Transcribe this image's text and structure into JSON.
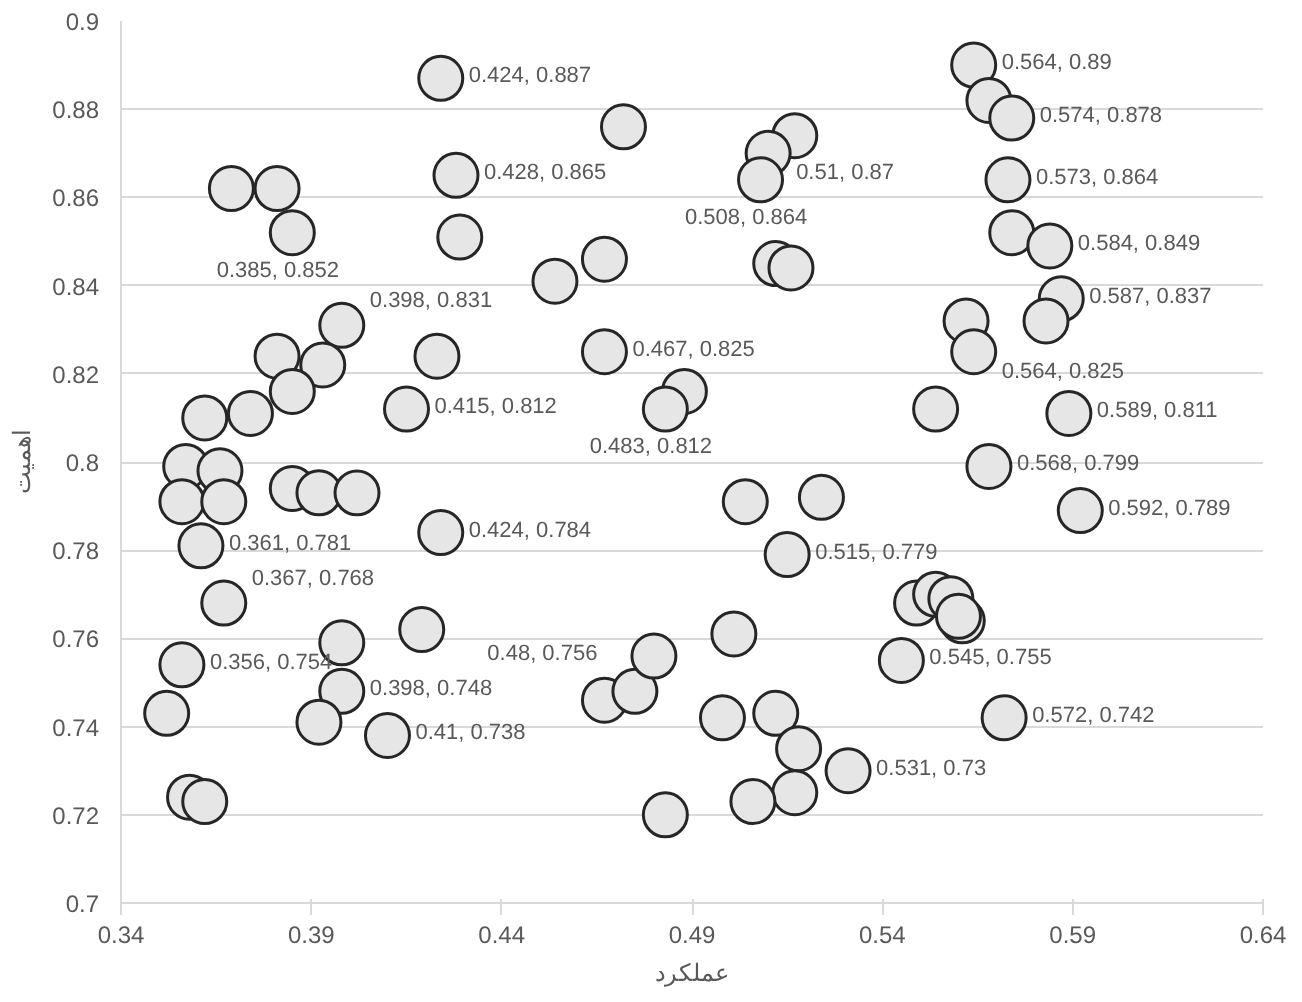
{
  "chart_data": {
    "type": "scatter",
    "xlabel": "عملکرد",
    "ylabel": "اهمیت",
    "xlim": [
      0.34,
      0.64
    ],
    "xticks": [
      0.34,
      0.39,
      0.44,
      0.49,
      0.54,
      0.59,
      0.64
    ],
    "ylim": [
      0.7,
      0.9
    ],
    "yticks": [
      0.7,
      0.72,
      0.74,
      0.76,
      0.78,
      0.8,
      0.82,
      0.84,
      0.86,
      0.88,
      0.9
    ],
    "grid": "y",
    "marker": "circle",
    "series": [
      {
        "color": "#e6e6e6",
        "x": [
          0.424,
          0.564,
          0.568,
          0.574,
          0.472,
          0.517,
          0.51,
          0.428,
          0.508,
          0.573,
          0.369,
          0.381,
          0.385,
          0.429,
          0.454,
          0.467,
          0.512,
          0.516,
          0.574,
          0.584,
          0.587,
          0.562,
          0.583,
          0.564,
          0.398,
          0.381,
          0.393,
          0.423,
          0.467,
          0.362,
          0.385,
          0.374,
          0.415,
          0.488,
          0.483,
          0.554,
          0.589,
          0.568,
          0.592,
          0.504,
          0.524,
          0.515,
          0.357,
          0.366,
          0.356,
          0.367,
          0.385,
          0.392,
          0.402,
          0.361,
          0.424,
          0.367,
          0.419,
          0.398,
          0.356,
          0.398,
          0.352,
          0.392,
          0.41,
          0.358,
          0.362,
          0.467,
          0.475,
          0.48,
          0.501,
          0.498,
          0.512,
          0.518,
          0.531,
          0.517,
          0.506,
          0.483,
          0.545,
          0.572,
          0.549,
          0.554,
          0.558,
          0.561,
          0.56
        ],
        "value_labels": [
          "0.424, 0.887",
          "0.564, 0.89",
          null,
          "0.574, 0.878",
          null,
          null,
          "0.51, 0.87",
          "0.428, 0.865",
          "0.508, 0.864",
          "0.573, 0.864",
          null,
          null,
          "0.385, 0.852",
          null,
          null,
          null,
          null,
          null,
          null,
          "0.584, 0.849",
          "0.587, 0.837",
          null,
          null,
          "0.564, 0.825",
          "0.398, 0.831",
          null,
          null,
          null,
          "0.467, 0.825",
          null,
          null,
          null,
          "0.415, 0.812",
          null,
          "0.483, 0.812",
          null,
          "0.589, 0.811",
          "0.568, 0.799",
          "0.592, 0.789",
          null,
          null,
          "0.515, 0.779",
          null,
          null,
          null,
          null,
          null,
          null,
          null,
          "0.361, 0.781",
          "0.424, 0.784",
          "0.367, 0.768",
          null,
          null,
          "0.356, 0.754",
          "0.398, 0.748",
          null,
          null,
          "0.41, 0.738",
          null,
          null,
          null,
          null,
          "0.48, 0.756",
          null,
          null,
          null,
          null,
          "0.531, 0.73",
          null,
          null,
          null,
          "0.545, 0.755",
          "0.572, 0.742",
          null,
          null,
          null,
          null,
          null
        ],
        "values": [
          0.887,
          0.89,
          0.882,
          0.878,
          0.876,
          0.874,
          0.87,
          0.865,
          0.864,
          0.864,
          0.862,
          0.862,
          0.852,
          0.851,
          0.841,
          0.846,
          0.845,
          0.844,
          0.852,
          0.849,
          0.837,
          0.832,
          0.832,
          0.825,
          0.831,
          0.824,
          0.822,
          0.824,
          0.825,
          0.81,
          0.816,
          0.811,
          0.812,
          0.816,
          0.812,
          0.812,
          0.811,
          0.799,
          0.789,
          0.791,
          0.792,
          0.779,
          0.799,
          0.798,
          0.791,
          0.791,
          0.794,
          0.793,
          0.793,
          0.781,
          0.784,
          0.768,
          0.762,
          0.759,
          0.754,
          0.748,
          0.743,
          0.741,
          0.738,
          0.724,
          0.723,
          0.746,
          0.748,
          0.756,
          0.761,
          0.742,
          0.743,
          0.735,
          0.73,
          0.725,
          0.723,
          0.72,
          0.755,
          0.742,
          0.768,
          0.77,
          0.769,
          0.764,
          0.765
        ]
      }
    ]
  }
}
